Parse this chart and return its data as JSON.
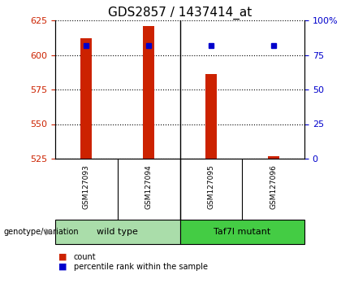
{
  "title": "GDS2857 / 1437414_at",
  "samples": [
    "GSM127093",
    "GSM127094",
    "GSM127095",
    "GSM127096"
  ],
  "counts": [
    612,
    621,
    586,
    527
  ],
  "percentiles": [
    82,
    82,
    82,
    82
  ],
  "ymin": 525,
  "ymax": 625,
  "yticks_left": [
    525,
    550,
    575,
    600,
    625
  ],
  "yticks_right": [
    0,
    25,
    50,
    75,
    100
  ],
  "bar_color": "#cc2200",
  "marker_color": "#0000cc",
  "groups": [
    {
      "label": "wild type",
      "indices": [
        0,
        1
      ],
      "color": "#aaddaa"
    },
    {
      "label": "Taf7l mutant",
      "indices": [
        2,
        3
      ],
      "color": "#44cc44"
    }
  ],
  "sample_bg_color": "#c8c8c8",
  "legend_count_color": "#cc2200",
  "legend_pct_color": "#0000cc",
  "title_fontsize": 11,
  "tick_fontsize": 8,
  "bar_width": 0.18
}
